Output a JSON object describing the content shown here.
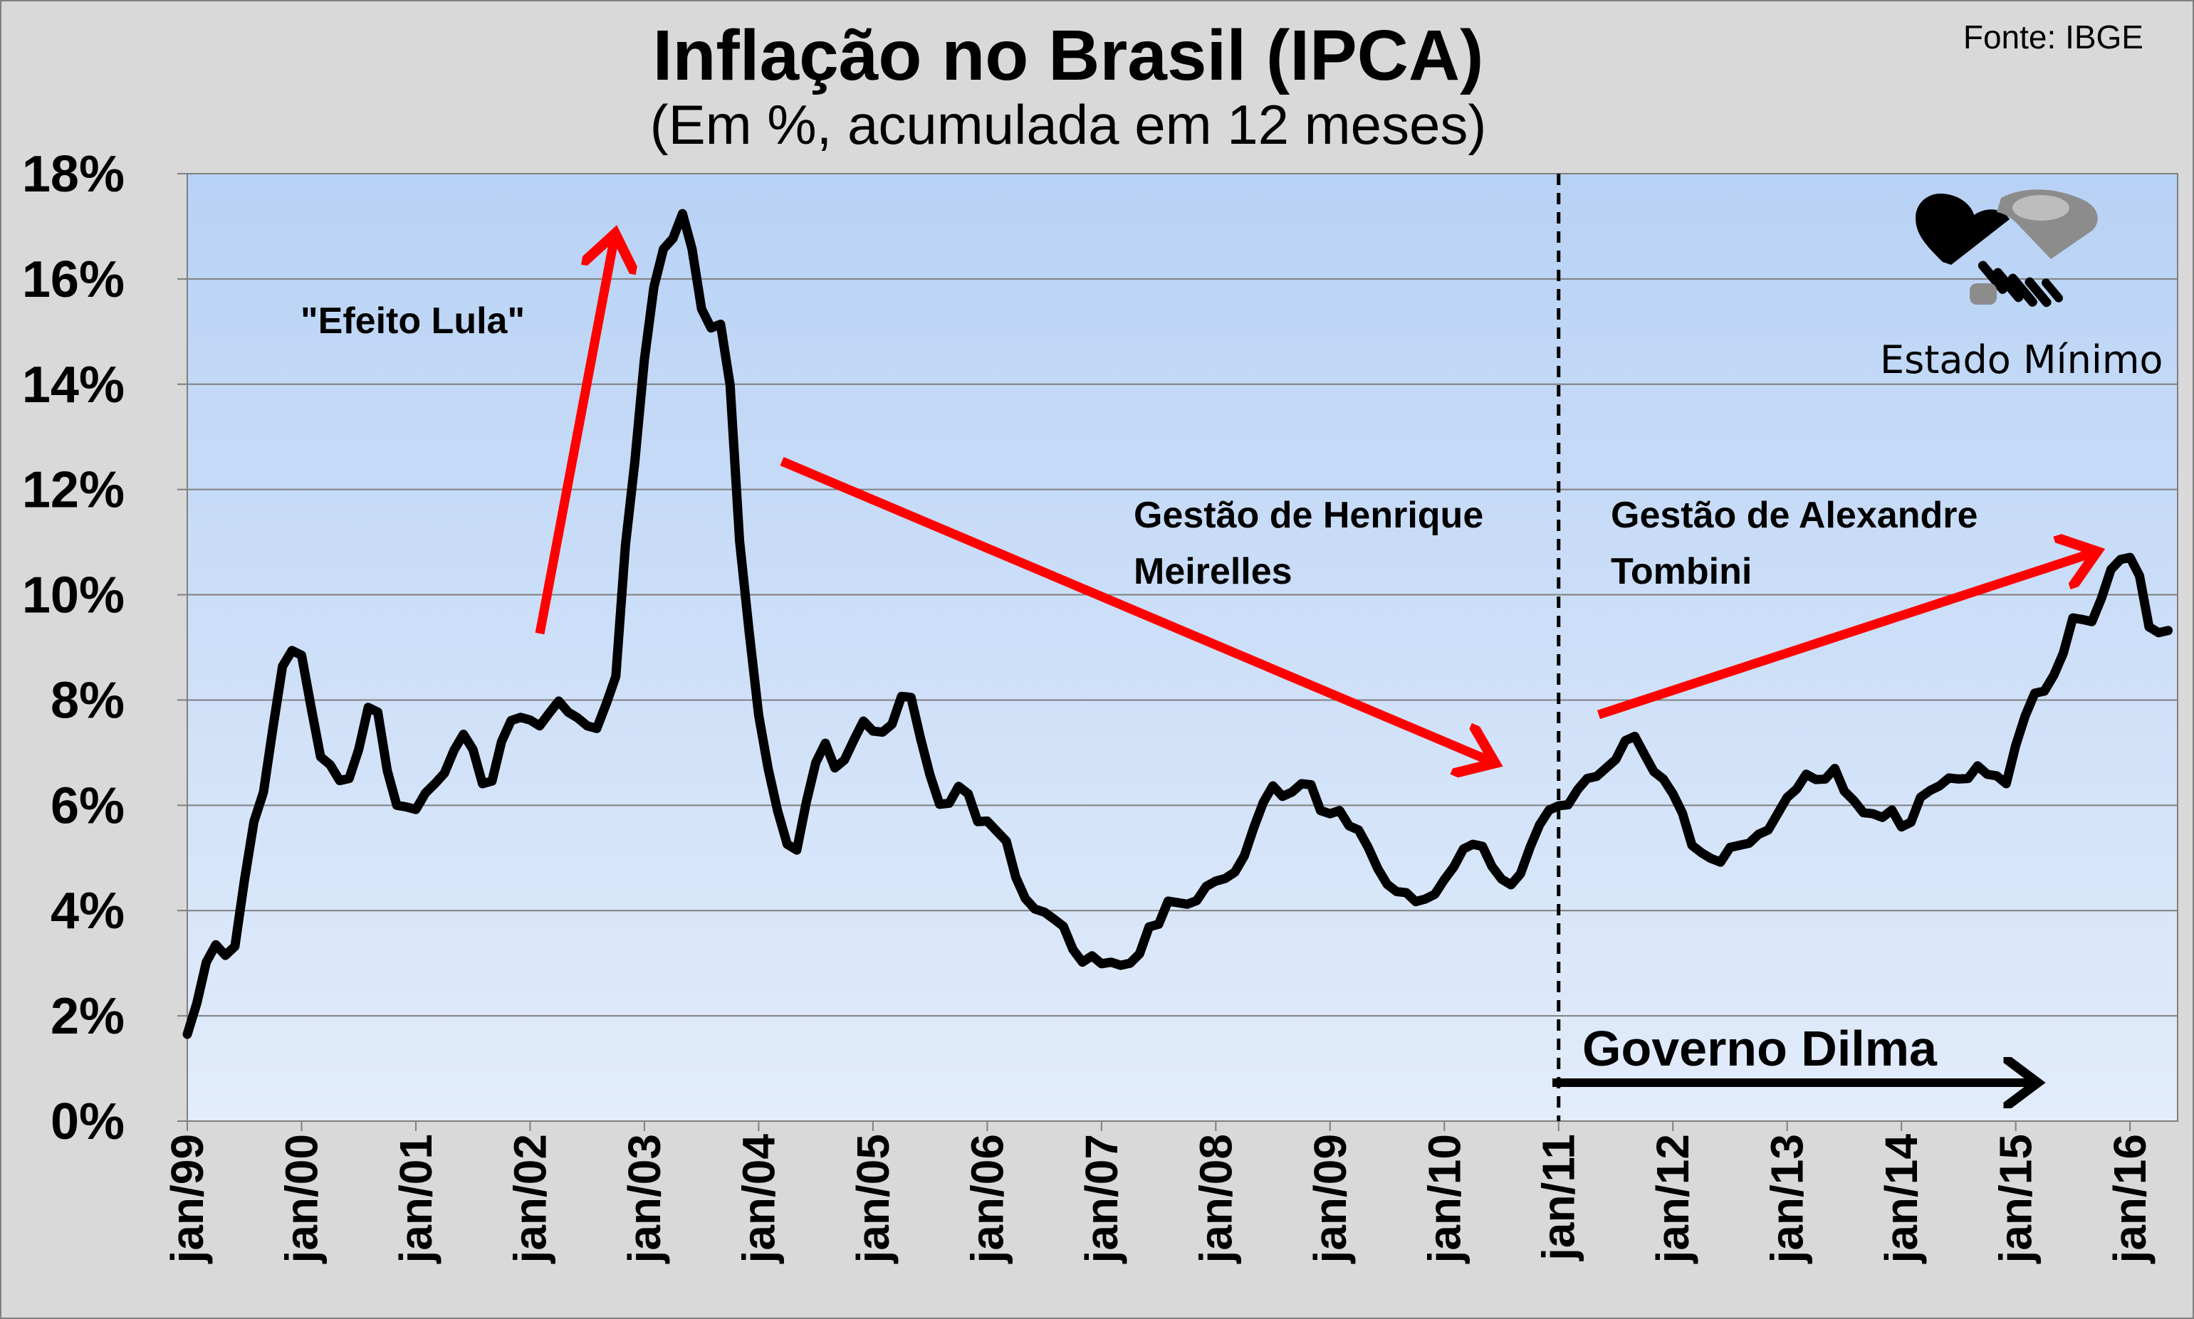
{
  "chart_data": {
    "type": "line",
    "title": "Inflação no Brasil (IPCA)",
    "subtitle": "(Em %, acumulada em 12 meses)",
    "source": "Fonte: IBGE",
    "ylim": [
      0,
      18
    ],
    "yticks": [
      {
        "value": 0,
        "label": "0%"
      },
      {
        "value": 2,
        "label": "2%"
      },
      {
        "value": 4,
        "label": "4%"
      },
      {
        "value": 6,
        "label": "6%"
      },
      {
        "value": 8,
        "label": "8%"
      },
      {
        "value": 10,
        "label": "10%"
      },
      {
        "value": 12,
        "label": "12%"
      },
      {
        "value": 14,
        "label": "14%"
      },
      {
        "value": 16,
        "label": "16%"
      },
      {
        "value": 18,
        "label": "18%"
      }
    ],
    "xlim": [
      "1999-01",
      "2016-06"
    ],
    "xticks": [
      {
        "value": "1999-01",
        "label": "jan/99"
      },
      {
        "value": "2000-01",
        "label": "jan/00"
      },
      {
        "value": "2001-01",
        "label": "jan/01"
      },
      {
        "value": "2002-01",
        "label": "jan/02"
      },
      {
        "value": "2003-01",
        "label": "jan/03"
      },
      {
        "value": "2004-01",
        "label": "jan/04"
      },
      {
        "value": "2005-01",
        "label": "jan/05"
      },
      {
        "value": "2006-01",
        "label": "jan/06"
      },
      {
        "value": "2007-01",
        "label": "jan/07"
      },
      {
        "value": "2008-01",
        "label": "jan/08"
      },
      {
        "value": "2009-01",
        "label": "jan/09"
      },
      {
        "value": "2010-01",
        "label": "jan/10"
      },
      {
        "value": "2011-01",
        "label": "jan/11"
      },
      {
        "value": "2012-01",
        "label": "jan/12"
      },
      {
        "value": "2013-01",
        "label": "jan/13"
      },
      {
        "value": "2014-01",
        "label": "jan/14"
      },
      {
        "value": "2015-01",
        "label": "jan/15"
      },
      {
        "value": "2016-01",
        "label": "jan/16"
      }
    ],
    "grid": true,
    "series": [
      {
        "color": "#000000",
        "points": [
          [
            "1999-01",
            1.65
          ],
          [
            "1999-02",
            2.24
          ],
          [
            "1999-03",
            3.02
          ],
          [
            "1999-04",
            3.35
          ],
          [
            "1999-05",
            3.15
          ],
          [
            "1999-06",
            3.32
          ],
          [
            "1999-07",
            4.57
          ],
          [
            "1999-08",
            5.69
          ],
          [
            "1999-09",
            6.25
          ],
          [
            "1999-10",
            7.48
          ],
          [
            "1999-11",
            8.64
          ],
          [
            "1999-12",
            8.94
          ],
          [
            "2000-01",
            8.85
          ],
          [
            "2000-02",
            7.86
          ],
          [
            "2000-03",
            6.92
          ],
          [
            "2000-04",
            6.77
          ],
          [
            "2000-05",
            6.47
          ],
          [
            "2000-06",
            6.51
          ],
          [
            "2000-07",
            7.06
          ],
          [
            "2000-08",
            7.86
          ],
          [
            "2000-09",
            7.77
          ],
          [
            "2000-10",
            6.66
          ],
          [
            "2000-11",
            6.0
          ],
          [
            "2000-12",
            5.97
          ],
          [
            "2001-01",
            5.92
          ],
          [
            "2001-02",
            6.23
          ],
          [
            "2001-03",
            6.41
          ],
          [
            "2001-04",
            6.61
          ],
          [
            "2001-05",
            7.04
          ],
          [
            "2001-06",
            7.35
          ],
          [
            "2001-07",
            7.06
          ],
          [
            "2001-08",
            6.41
          ],
          [
            "2001-09",
            6.46
          ],
          [
            "2001-10",
            7.21
          ],
          [
            "2001-11",
            7.61
          ],
          [
            "2001-12",
            7.67
          ],
          [
            "2002-01",
            7.62
          ],
          [
            "2002-02",
            7.51
          ],
          [
            "2002-03",
            7.75
          ],
          [
            "2002-04",
            7.98
          ],
          [
            "2002-05",
            7.77
          ],
          [
            "2002-06",
            7.66
          ],
          [
            "2002-07",
            7.51
          ],
          [
            "2002-08",
            7.46
          ],
          [
            "2002-09",
            7.93
          ],
          [
            "2002-10",
            8.45
          ],
          [
            "2002-11",
            10.93
          ],
          [
            "2002-12",
            12.53
          ],
          [
            "2003-01",
            14.47
          ],
          [
            "2003-02",
            15.85
          ],
          [
            "2003-03",
            16.57
          ],
          [
            "2003-04",
            16.77
          ],
          [
            "2003-05",
            17.24
          ],
          [
            "2003-06",
            16.57
          ],
          [
            "2003-07",
            15.43
          ],
          [
            "2003-08",
            15.07
          ],
          [
            "2003-09",
            15.14
          ],
          [
            "2003-10",
            13.98
          ],
          [
            "2003-11",
            11.02
          ],
          [
            "2003-12",
            9.3
          ],
          [
            "2004-01",
            7.71
          ],
          [
            "2004-02",
            6.69
          ],
          [
            "2004-03",
            5.89
          ],
          [
            "2004-04",
            5.26
          ],
          [
            "2004-05",
            5.15
          ],
          [
            "2004-06",
            6.06
          ],
          [
            "2004-07",
            6.81
          ],
          [
            "2004-08",
            7.18
          ],
          [
            "2004-09",
            6.71
          ],
          [
            "2004-10",
            6.86
          ],
          [
            "2004-11",
            7.24
          ],
          [
            "2004-12",
            7.6
          ],
          [
            "2005-01",
            7.41
          ],
          [
            "2005-02",
            7.39
          ],
          [
            "2005-03",
            7.54
          ],
          [
            "2005-04",
            8.07
          ],
          [
            "2005-05",
            8.05
          ],
          [
            "2005-06",
            7.27
          ],
          [
            "2005-07",
            6.57
          ],
          [
            "2005-08",
            6.02
          ],
          [
            "2005-09",
            6.04
          ],
          [
            "2005-10",
            6.36
          ],
          [
            "2005-11",
            6.22
          ],
          [
            "2005-12",
            5.69
          ],
          [
            "2006-01",
            5.7
          ],
          [
            "2006-02",
            5.51
          ],
          [
            "2006-03",
            5.32
          ],
          [
            "2006-04",
            4.63
          ],
          [
            "2006-05",
            4.23
          ],
          [
            "2006-06",
            4.03
          ],
          [
            "2006-07",
            3.97
          ],
          [
            "2006-08",
            3.84
          ],
          [
            "2006-09",
            3.7
          ],
          [
            "2006-10",
            3.26
          ],
          [
            "2006-11",
            3.02
          ],
          [
            "2006-12",
            3.14
          ],
          [
            "2007-01",
            2.99
          ],
          [
            "2007-02",
            3.02
          ],
          [
            "2007-03",
            2.96
          ],
          [
            "2007-04",
            3.0
          ],
          [
            "2007-05",
            3.18
          ],
          [
            "2007-06",
            3.69
          ],
          [
            "2007-07",
            3.74
          ],
          [
            "2007-08",
            4.18
          ],
          [
            "2007-09",
            4.15
          ],
          [
            "2007-10",
            4.12
          ],
          [
            "2007-11",
            4.19
          ],
          [
            "2007-12",
            4.46
          ],
          [
            "2008-01",
            4.56
          ],
          [
            "2008-02",
            4.61
          ],
          [
            "2008-03",
            4.73
          ],
          [
            "2008-04",
            5.04
          ],
          [
            "2008-05",
            5.58
          ],
          [
            "2008-06",
            6.06
          ],
          [
            "2008-07",
            6.37
          ],
          [
            "2008-08",
            6.17
          ],
          [
            "2008-09",
            6.25
          ],
          [
            "2008-10",
            6.41
          ],
          [
            "2008-11",
            6.39
          ],
          [
            "2008-12",
            5.9
          ],
          [
            "2009-01",
            5.84
          ],
          [
            "2009-02",
            5.9
          ],
          [
            "2009-03",
            5.61
          ],
          [
            "2009-04",
            5.53
          ],
          [
            "2009-05",
            5.2
          ],
          [
            "2009-06",
            4.8
          ],
          [
            "2009-07",
            4.5
          ],
          [
            "2009-08",
            4.36
          ],
          [
            "2009-09",
            4.34
          ],
          [
            "2009-10",
            4.17
          ],
          [
            "2009-11",
            4.22
          ],
          [
            "2009-12",
            4.31
          ],
          [
            "2010-01",
            4.59
          ],
          [
            "2010-02",
            4.83
          ],
          [
            "2010-03",
            5.17
          ],
          [
            "2010-04",
            5.26
          ],
          [
            "2010-05",
            5.22
          ],
          [
            "2010-06",
            4.84
          ],
          [
            "2010-07",
            4.6
          ],
          [
            "2010-08",
            4.49
          ],
          [
            "2010-09",
            4.7
          ],
          [
            "2010-10",
            5.2
          ],
          [
            "2010-11",
            5.63
          ],
          [
            "2010-12",
            5.91
          ],
          [
            "2011-01",
            5.99
          ],
          [
            "2011-02",
            6.01
          ],
          [
            "2011-03",
            6.3
          ],
          [
            "2011-04",
            6.51
          ],
          [
            "2011-05",
            6.55
          ],
          [
            "2011-06",
            6.71
          ],
          [
            "2011-07",
            6.87
          ],
          [
            "2011-08",
            7.23
          ],
          [
            "2011-09",
            7.31
          ],
          [
            "2011-10",
            6.97
          ],
          [
            "2011-11",
            6.64
          ],
          [
            "2011-12",
            6.5
          ],
          [
            "2012-01",
            6.22
          ],
          [
            "2012-02",
            5.85
          ],
          [
            "2012-03",
            5.24
          ],
          [
            "2012-04",
            5.1
          ],
          [
            "2012-05",
            4.99
          ],
          [
            "2012-06",
            4.92
          ],
          [
            "2012-07",
            5.2
          ],
          [
            "2012-08",
            5.24
          ],
          [
            "2012-09",
            5.28
          ],
          [
            "2012-10",
            5.45
          ],
          [
            "2012-11",
            5.53
          ],
          [
            "2012-12",
            5.84
          ],
          [
            "2013-01",
            6.15
          ],
          [
            "2013-02",
            6.31
          ],
          [
            "2013-03",
            6.59
          ],
          [
            "2013-04",
            6.49
          ],
          [
            "2013-05",
            6.5
          ],
          [
            "2013-06",
            6.7
          ],
          [
            "2013-07",
            6.27
          ],
          [
            "2013-08",
            6.09
          ],
          [
            "2013-09",
            5.86
          ],
          [
            "2013-10",
            5.84
          ],
          [
            "2013-11",
            5.77
          ],
          [
            "2013-12",
            5.91
          ],
          [
            "2014-01",
            5.59
          ],
          [
            "2014-02",
            5.68
          ],
          [
            "2014-03",
            6.15
          ],
          [
            "2014-04",
            6.28
          ],
          [
            "2014-05",
            6.37
          ],
          [
            "2014-06",
            6.52
          ],
          [
            "2014-07",
            6.5
          ],
          [
            "2014-08",
            6.51
          ],
          [
            "2014-09",
            6.75
          ],
          [
            "2014-10",
            6.59
          ],
          [
            "2014-11",
            6.56
          ],
          [
            "2014-12",
            6.41
          ],
          [
            "2015-01",
            7.14
          ],
          [
            "2015-02",
            7.7
          ],
          [
            "2015-03",
            8.13
          ],
          [
            "2015-04",
            8.17
          ],
          [
            "2015-05",
            8.47
          ],
          [
            "2015-06",
            8.89
          ],
          [
            "2015-07",
            9.56
          ],
          [
            "2015-08",
            9.53
          ],
          [
            "2015-09",
            9.49
          ],
          [
            "2015-10",
            9.93
          ],
          [
            "2015-11",
            10.48
          ],
          [
            "2015-12",
            10.67
          ],
          [
            "2016-01",
            10.71
          ],
          [
            "2016-02",
            10.36
          ],
          [
            "2016-03",
            9.39
          ],
          [
            "2016-04",
            9.28
          ],
          [
            "2016-05",
            9.32
          ]
        ]
      }
    ],
    "annotations": {
      "efeito_lula": "\"Efeito Lula\"",
      "meirelles": [
        "Gestão de Henrique",
        "Meirelles"
      ],
      "tombini": [
        "Gestão de Alexandre",
        "Tombini"
      ],
      "governo_dilma": "Governo Dilma",
      "divider_date": "2011-01",
      "arrow_color": "#ff0000"
    }
  },
  "logo": {
    "text": "Estado Mínimo",
    "icon": "handshake-icon"
  },
  "colors": {
    "page_bg": "#d9d9d9",
    "plot_top": "#b8d2f5",
    "plot_bottom": "#e2ecfb",
    "grid": "#7f7f7f",
    "line": "#000000",
    "arrow": "#ff0000"
  }
}
